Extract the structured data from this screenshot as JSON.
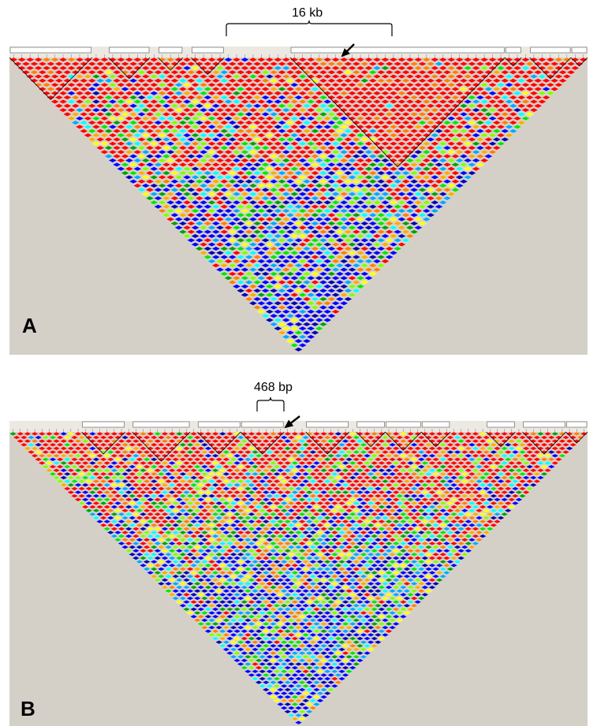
{
  "panels": [
    {
      "letter": "A",
      "span_label": "16 kb",
      "seed": 11,
      "red_bias": 0.28,
      "marker_count": 70,
      "blocks": [
        [
          0,
          10
        ],
        [
          12,
          17
        ],
        [
          18,
          21
        ],
        [
          22,
          26
        ],
        [
          34,
          60
        ],
        [
          60,
          62
        ],
        [
          63,
          68
        ],
        [
          68,
          70
        ]
      ]
    },
    {
      "letter": "B",
      "span_label": "468 bp",
      "seed": 29,
      "red_bias": 0.12,
      "marker_count": 80,
      "blocks": [
        [
          10,
          16
        ],
        [
          17,
          25
        ],
        [
          26,
          32
        ],
        [
          32,
          38
        ],
        [
          41,
          47
        ],
        [
          48,
          52
        ],
        [
          52,
          57
        ],
        [
          57,
          61
        ],
        [
          66,
          70
        ],
        [
          71,
          77
        ],
        [
          77,
          80
        ]
      ]
    }
  ],
  "palette": [
    "#FF0000",
    "#FF7F00",
    "#FFAA00",
    "#FFFF00",
    "#7FFF00",
    "#00E600",
    "#00A000",
    "#00FFFF",
    "#00A8FF",
    "#0000FF",
    "#0000B0"
  ],
  "background_color": "#D4D0C8"
}
